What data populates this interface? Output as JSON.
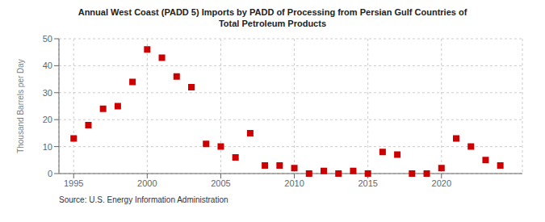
{
  "chart_data": {
    "type": "scatter",
    "title": "Annual West Coast (PADD 5) Imports by PADD of Processing from Persian Gulf Countries of\nTotal Petroleum Products",
    "ylabel": "Thousand Barrels per Day",
    "annotations": [
      "Source: U.S. Energy Information Administration"
    ],
    "x": [
      1995,
      1996,
      1997,
      1998,
      1999,
      2000,
      2001,
      2002,
      2003,
      2004,
      2005,
      2006,
      2007,
      2008,
      2009,
      2010,
      2011,
      2012,
      2013,
      2014,
      2015,
      2016,
      2017,
      2018,
      2019,
      2020,
      2021,
      2022,
      2023,
      2024
    ],
    "values": [
      13,
      18,
      24,
      25,
      34,
      46,
      43,
      36,
      32,
      11,
      10,
      6,
      15,
      3,
      3,
      2,
      0,
      1,
      0,
      1,
      0,
      8,
      7,
      0,
      0,
      2,
      13,
      10,
      5,
      3
    ],
    "color": "#cc0000",
    "marker": "square",
    "xlim": [
      1994.0,
      2025.5
    ],
    "ylim": [
      0,
      50
    ],
    "xticks": [
      1995,
      2000,
      2005,
      2010,
      2015,
      2020
    ],
    "yticks": [
      0,
      10,
      20,
      30,
      40,
      50
    ],
    "grid": true
  }
}
